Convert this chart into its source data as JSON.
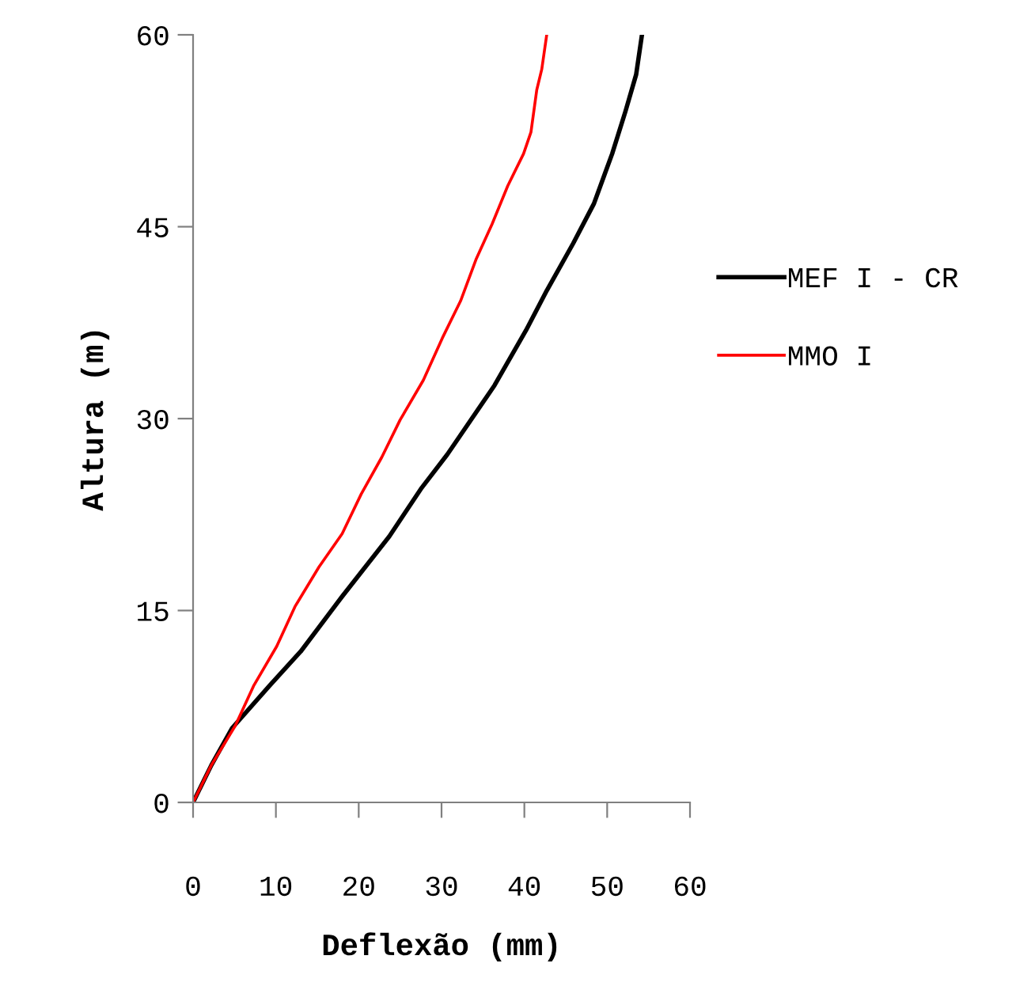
{
  "chart_data": {
    "type": "line",
    "xlabel": "Deflexão (mm)",
    "ylabel": "Altura (m)",
    "xlim": [
      0,
      60
    ],
    "xticks": [
      0,
      10,
      20,
      30,
      40,
      50,
      60
    ],
    "ylim": [
      0,
      60
    ],
    "yticks": [
      0,
      15,
      30,
      45,
      60
    ],
    "grid": false,
    "legend": "right",
    "marker": "none",
    "line_style": "solid",
    "series": [
      {
        "name": "MEF I - CR",
        "color": "#000000",
        "x": [
          0,
          2.2,
          4.7,
          9.2,
          13.0,
          18.0,
          23.7,
          27.5,
          30.7,
          36.4,
          40.2,
          42.7,
          45.9,
          48.4,
          50.6,
          52.2,
          53.5,
          54.2
        ],
        "values": [
          0,
          2.9,
          5.8,
          9.1,
          11.8,
          16.1,
          20.8,
          24.5,
          27.2,
          32.6,
          36.9,
          40.0,
          43.7,
          46.8,
          50.7,
          54.0,
          56.9,
          60
        ]
      },
      {
        "name": "MMO I",
        "color": "#ff0000",
        "x": [
          0,
          2.2,
          5.1,
          7.3,
          10.1,
          12.3,
          15.2,
          18.0,
          20.3,
          22.8,
          25.0,
          27.8,
          30.1,
          32.3,
          34.2,
          36.1,
          38.0,
          39.9,
          40.8,
          41.5,
          42.1,
          42.7
        ],
        "values": [
          0,
          2.9,
          6.0,
          9.1,
          12.2,
          15.3,
          18.4,
          21.0,
          24.1,
          27.0,
          29.9,
          33.0,
          36.3,
          39.2,
          42.5,
          45.2,
          48.2,
          50.7,
          52.4,
          55.7,
          57.3,
          60
        ]
      }
    ]
  }
}
